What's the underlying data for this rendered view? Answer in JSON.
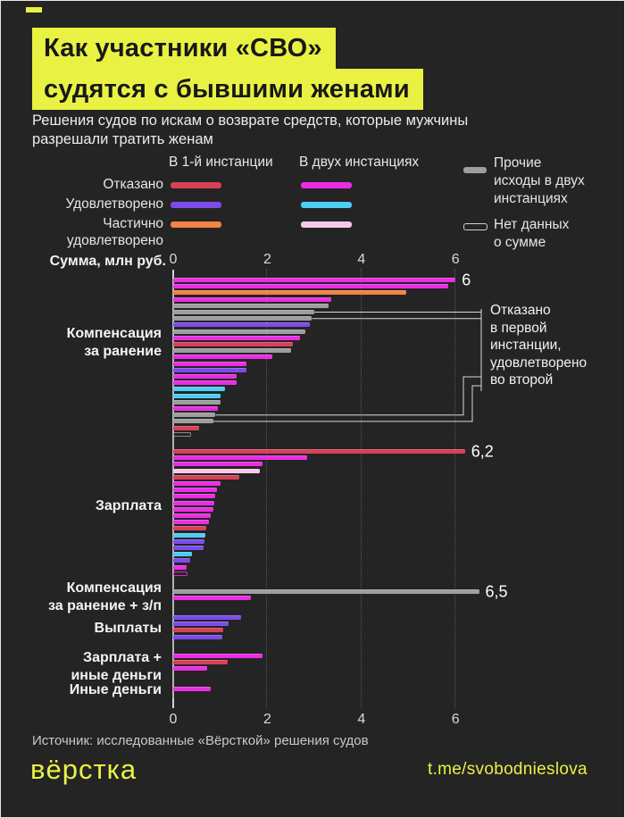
{
  "page": {
    "background": "#242424",
    "accent_yellow": "#e9f243"
  },
  "header": {
    "title_line1": "Как участники «СВО»",
    "title_line2": "судятся с бывшими женами",
    "subtitle": "Решения судов по искам о возврате средств, которые мужчины\nразрешали тратить женам"
  },
  "legend": {
    "col1_header": "В 1-й инстанции",
    "col2_header": "В двух инстанциях",
    "rows": [
      {
        "label": "Отказано",
        "first_color": "#d84057",
        "both_color": "#ea2de4"
      },
      {
        "label": "Удовлетворено",
        "first_color": "#7c4cea",
        "both_color": "#4ecdf2"
      },
      {
        "label": "Частично\nудовлетворено",
        "first_color": "#f08440",
        "both_color": "#f7c9e8"
      }
    ],
    "other_label": "Прочие\nисходы в двух\nинстанциях",
    "other_color": "#9e9e9e",
    "nodata_label": "Нет данных\nо сумме"
  },
  "axis": {
    "label": "Сумма, млн руб.",
    "ticks": [
      0,
      2,
      4,
      6
    ]
  },
  "annotation": {
    "text": "Отказано\nв первой\nинстанции,\nудовлетворено\nво второй"
  },
  "chart_data": {
    "type": "bar",
    "title": "Решения судов по искам о возврате средств",
    "unit": "млн руб.",
    "xlim": [
      0,
      6.6
    ],
    "grid": "dotted vertical at 2, 4, 6",
    "legend_position": "top",
    "status_colors": {
      "refused_first": "#d84057",
      "refused_both": "#ea2de4",
      "granted_first": "#7c4cea",
      "granted_both": "#4ecdf2",
      "partial_first": "#f08440",
      "partial_both": "#f7c9e8",
      "other_both": "#9e9e9e"
    },
    "sections": [
      {
        "label": "Компенсация\nза ранение",
        "bars": [
          {
            "s": "refused_both",
            "v": 6.0,
            "label": "6"
          },
          {
            "s": "refused_both",
            "v": 5.85
          },
          {
            "s": "partial_first",
            "v": 4.95
          },
          {
            "s": "refused_both",
            "v": 3.35
          },
          {
            "s": "other_both",
            "v": 3.3
          },
          {
            "s": "other_both",
            "v": 3.0,
            "annotated": true
          },
          {
            "s": "other_both",
            "v": 2.95,
            "annotated": true
          },
          {
            "s": "granted_first",
            "v": 2.9
          },
          {
            "s": "other_both",
            "v": 2.8
          },
          {
            "s": "refused_both",
            "v": 2.7
          },
          {
            "s": "refused_first",
            "v": 2.55
          },
          {
            "s": "other_both",
            "v": 2.5
          },
          {
            "s": "refused_both",
            "v": 2.1
          },
          {
            "s": "refused_both",
            "v": 1.55
          },
          {
            "s": "granted_first",
            "v": 1.55
          },
          {
            "s": "refused_both",
            "v": 1.35
          },
          {
            "s": "refused_both",
            "v": 1.35
          },
          {
            "s": "granted_both",
            "v": 1.1
          },
          {
            "s": "granted_both",
            "v": 1.0
          },
          {
            "s": "other_both",
            "v": 1.0
          },
          {
            "s": "refused_both",
            "v": 0.95
          },
          {
            "s": "other_both",
            "v": 0.9,
            "annotated": true
          },
          {
            "s": "other_both",
            "v": 0.85,
            "annotated": true
          },
          {
            "s": "refused_first",
            "v": 0.55
          },
          {
            "s": "other_both",
            "v": 0.35,
            "no_sum": true
          }
        ]
      },
      {
        "label": "Зарплата",
        "bars": [
          {
            "s": "refused_first",
            "v": 6.2,
            "label": "6,2"
          },
          {
            "s": "refused_both",
            "v": 2.85
          },
          {
            "s": "refused_both",
            "v": 1.9
          },
          {
            "s": "partial_both",
            "v": 1.85
          },
          {
            "s": "refused_first",
            "v": 1.4
          },
          {
            "s": "refused_both",
            "v": 1.0
          },
          {
            "s": "refused_both",
            "v": 0.93
          },
          {
            "s": "refused_both",
            "v": 0.9
          },
          {
            "s": "refused_both",
            "v": 0.87
          },
          {
            "s": "refused_both",
            "v": 0.85
          },
          {
            "s": "refused_both",
            "v": 0.8
          },
          {
            "s": "refused_both",
            "v": 0.76
          },
          {
            "s": "refused_first",
            "v": 0.71
          },
          {
            "s": "granted_both",
            "v": 0.69
          },
          {
            "s": "granted_first",
            "v": 0.66
          },
          {
            "s": "granted_first",
            "v": 0.65
          },
          {
            "s": "granted_both",
            "v": 0.4
          },
          {
            "s": "granted_first",
            "v": 0.37
          },
          {
            "s": "refused_both",
            "v": 0.28
          },
          {
            "s": "refused_both",
            "v": 0.27,
            "no_sum": true
          }
        ]
      },
      {
        "label": "Компенсация\nза ранение + з/п",
        "bars": [
          {
            "s": "other_both",
            "v": 6.5,
            "label": "6,5"
          },
          {
            "s": "refused_both",
            "v": 1.65
          }
        ]
      },
      {
        "label": "Выплаты",
        "bars": [
          {
            "s": "granted_first",
            "v": 1.45
          },
          {
            "s": "granted_first",
            "v": 1.18
          },
          {
            "s": "refused_first",
            "v": 1.06
          },
          {
            "s": "granted_first",
            "v": 1.05
          }
        ]
      },
      {
        "label": "Зарплата +\nиные деньги",
        "bars": [
          {
            "s": "refused_both",
            "v": 1.9
          },
          {
            "s": "refused_first",
            "v": 1.15
          },
          {
            "s": "refused_both",
            "v": 0.72
          }
        ]
      },
      {
        "label": "Иные деньги",
        "bars": [
          {
            "s": "refused_both",
            "v": 0.8
          }
        ]
      }
    ]
  },
  "footer": {
    "source": "Источник: исследованные «Вёрсткой» решения судов",
    "logo_text": "вёрстка",
    "link": "t.me/svobodnieslova"
  }
}
